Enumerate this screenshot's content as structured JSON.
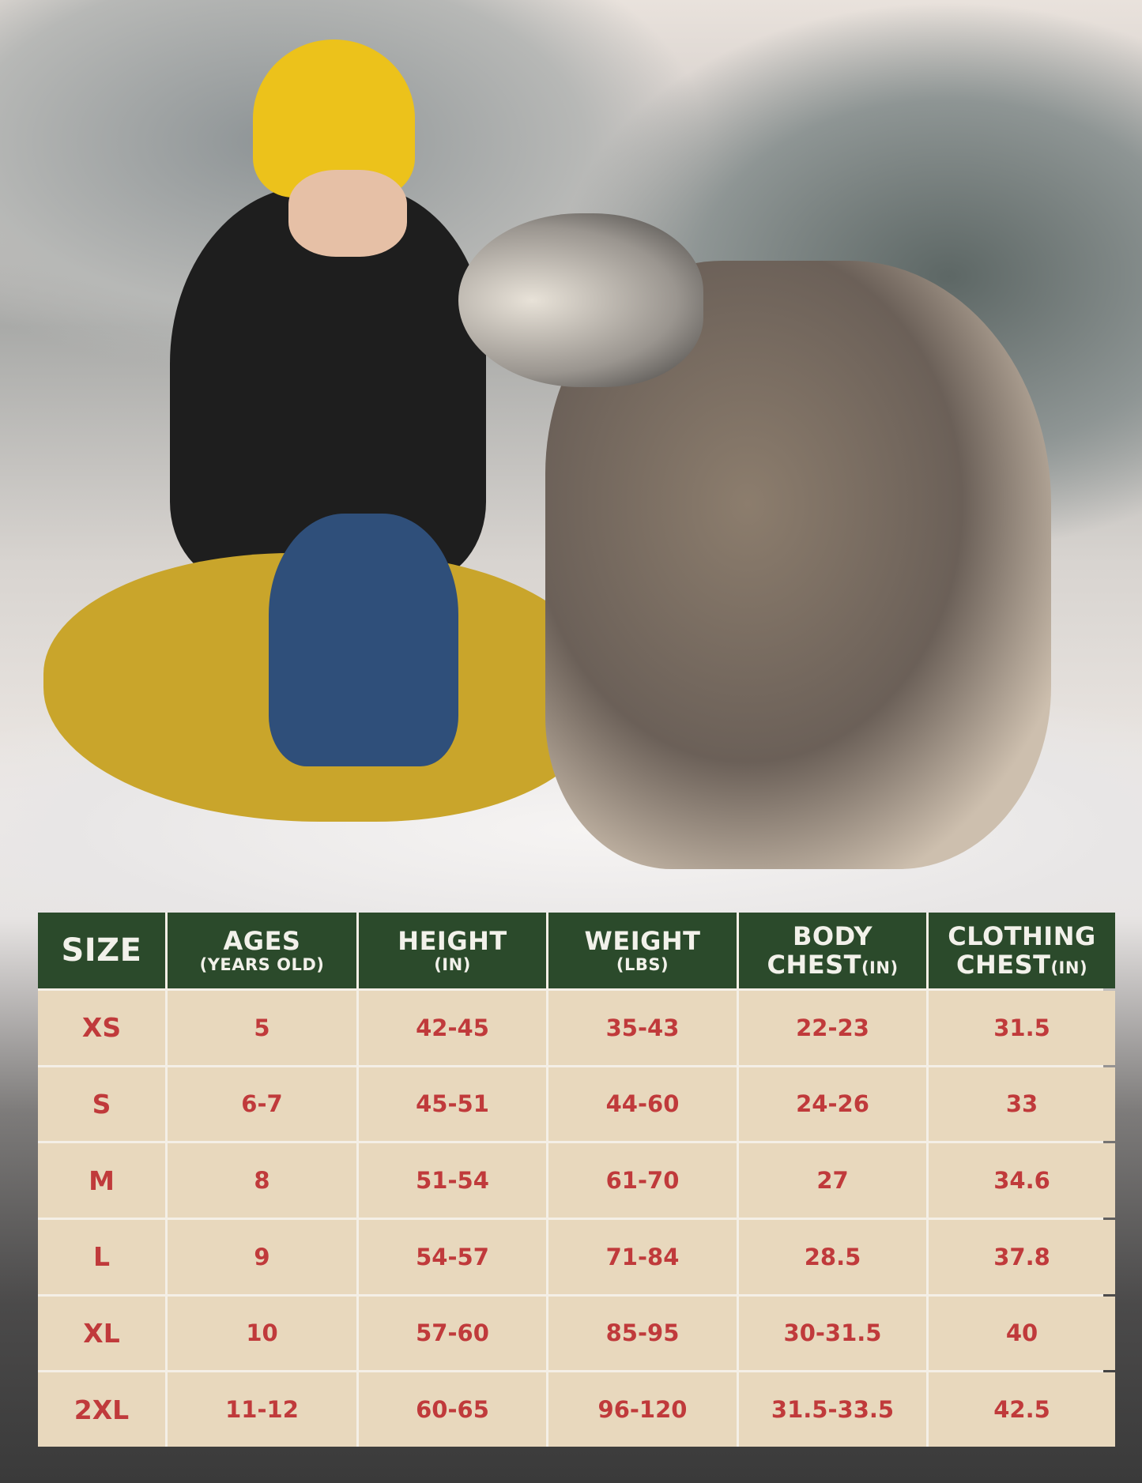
{
  "colors": {
    "header_bg": "#2b4a2b",
    "header_text": "#f2f1ea",
    "cell_bg": "#e8d8bd",
    "cell_text": "#c03a3b"
  },
  "table": {
    "headers": [
      {
        "main": "SIZE",
        "sub": ""
      },
      {
        "main": "AGES",
        "sub": "(YEARS OLD)"
      },
      {
        "main": "HEIGHT",
        "sub": "(IN)"
      },
      {
        "main": "WEIGHT",
        "sub": "(LBS)"
      },
      {
        "main": "BODY",
        "main2": "CHEST",
        "sub": "(IN)"
      },
      {
        "main": "CLOTHING",
        "main2": "CHEST",
        "sub": "(IN)"
      }
    ],
    "rows": [
      [
        "XS",
        "5",
        "42-45",
        "35-43",
        "22-23",
        "31.5"
      ],
      [
        "S",
        "6-7",
        "45-51",
        "44-60",
        "24-26",
        "33"
      ],
      [
        "M",
        "8",
        "51-54",
        "61-70",
        "27",
        "34.6"
      ],
      [
        "L",
        "9",
        "54-57",
        "71-84",
        "28.5",
        "37.8"
      ],
      [
        "XL",
        "10",
        "57-60",
        "85-95",
        "30-31.5",
        "40"
      ],
      [
        "2XL",
        "11-12",
        "60-65",
        "96-120",
        "31.5-33.5",
        "42.5"
      ]
    ]
  }
}
